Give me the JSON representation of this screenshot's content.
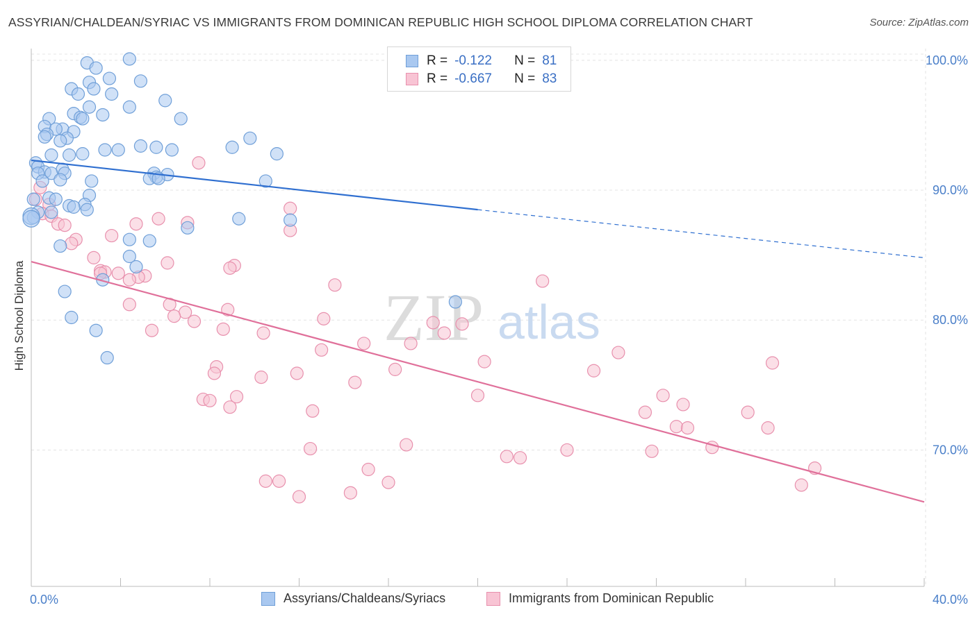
{
  "title": "ASSYRIAN/CHALDEAN/SYRIAC VS IMMIGRANTS FROM DOMINICAN REPUBLIC HIGH SCHOOL DIPLOMA CORRELATION CHART",
  "source": "Source: ZipAtlas.com",
  "watermark": {
    "zip": "ZIP",
    "atlas": "atlas"
  },
  "legend": {
    "r_label": "R =",
    "n_label": "N =",
    "rows": [
      {
        "r": "-0.122",
        "n": "81",
        "color": "#a9c8f0",
        "border": "#6f9fd8"
      },
      {
        "r": "-0.667",
        "n": "83",
        "color": "#f8c4d4",
        "border": "#e890ad"
      }
    ]
  },
  "bottom_legend": [
    {
      "label": "Assyrians/Chaldeans/Syriacs",
      "color": "#a9c8f0",
      "border": "#6f9fd8"
    },
    {
      "label": "Immigrants from Dominican Republic",
      "color": "#f8c4d4",
      "border": "#e890ad"
    }
  ],
  "chart_data": {
    "type": "scatter",
    "title": "ASSYRIAN/CHALDEAN/SYRIAC VS IMMIGRANTS FROM DOMINICAN REPUBLIC HIGH SCHOOL DIPLOMA CORRELATION CHART",
    "xlabel": "",
    "ylabel": "High School Diploma",
    "xlim": [
      0,
      40
    ],
    "ylim": [
      59.5,
      100.9
    ],
    "x_tick_labels": [
      "0.0%",
      "40.0%"
    ],
    "y_ticks": [
      70,
      80,
      90,
      100
    ],
    "y_tick_labels": [
      "70.0%",
      "80.0%",
      "90.0%",
      "100.0%"
    ],
    "grid": true,
    "legend_position": "top-center",
    "series": [
      {
        "name": "Assyrians/Chaldeans/Syriacs",
        "color": "#a9c8f0",
        "edge": "#6f9fd8",
        "line_color": "#2f6fd0",
        "trend": {
          "x": [
            0,
            20
          ],
          "y": [
            92.3,
            88.5
          ]
        },
        "trend_dashed": {
          "x": [
            20,
            40
          ],
          "y": [
            88.5,
            84.8
          ]
        },
        "points": [
          [
            1.8,
            97.8
          ],
          [
            2.5,
            99.8
          ],
          [
            2.9,
            99.4
          ],
          [
            4.4,
            100.1
          ],
          [
            3.5,
            98.6
          ],
          [
            4.9,
            98.4
          ],
          [
            2.6,
            98.3
          ],
          [
            2.8,
            97.8
          ],
          [
            3.6,
            97.4
          ],
          [
            2.1,
            97.4
          ],
          [
            6.0,
            96.9
          ],
          [
            4.4,
            96.4
          ],
          [
            2.6,
            96.4
          ],
          [
            3.2,
            95.8
          ],
          [
            1.9,
            95.9
          ],
          [
            2.2,
            95.6
          ],
          [
            2.3,
            95.5
          ],
          [
            0.8,
            95.5
          ],
          [
            6.7,
            95.5
          ],
          [
            0.6,
            94.9
          ],
          [
            1.4,
            94.7
          ],
          [
            1.1,
            94.7
          ],
          [
            1.9,
            94.5
          ],
          [
            0.7,
            94.3
          ],
          [
            0.6,
            94.1
          ],
          [
            1.6,
            94.0
          ],
          [
            9.8,
            94.0
          ],
          [
            1.3,
            93.8
          ],
          [
            9.0,
            93.3
          ],
          [
            4.9,
            93.4
          ],
          [
            5.6,
            93.3
          ],
          [
            3.3,
            93.1
          ],
          [
            3.9,
            93.1
          ],
          [
            6.3,
            93.1
          ],
          [
            2.3,
            92.8
          ],
          [
            11.0,
            92.8
          ],
          [
            0.9,
            92.7
          ],
          [
            1.7,
            92.7
          ],
          [
            0.2,
            92.1
          ],
          [
            0.3,
            91.8
          ],
          [
            1.4,
            91.6
          ],
          [
            0.6,
            91.4
          ],
          [
            0.3,
            91.3
          ],
          [
            1.5,
            91.3
          ],
          [
            0.9,
            91.3
          ],
          [
            5.5,
            91.3
          ],
          [
            6.1,
            91.2
          ],
          [
            5.6,
            91.0
          ],
          [
            5.3,
            90.9
          ],
          [
            5.7,
            90.9
          ],
          [
            1.3,
            90.8
          ],
          [
            0.5,
            90.7
          ],
          [
            2.7,
            90.7
          ],
          [
            10.5,
            90.7
          ],
          [
            2.6,
            89.6
          ],
          [
            0.8,
            89.4
          ],
          [
            1.1,
            89.3
          ],
          [
            0.1,
            89.3
          ],
          [
            2.4,
            88.9
          ],
          [
            1.7,
            88.8
          ],
          [
            1.9,
            88.7
          ],
          [
            2.5,
            88.5
          ],
          [
            0.3,
            88.3
          ],
          [
            0.9,
            88.3
          ],
          [
            0.1,
            87.9
          ],
          [
            9.3,
            87.8
          ],
          [
            11.6,
            87.7
          ],
          [
            7.0,
            87.1
          ],
          [
            4.4,
            86.2
          ],
          [
            5.3,
            86.1
          ],
          [
            1.3,
            85.7
          ],
          [
            4.4,
            84.9
          ],
          [
            4.7,
            84.1
          ],
          [
            3.2,
            83.1
          ],
          [
            1.5,
            82.2
          ],
          [
            19.0,
            81.4
          ],
          [
            1.8,
            80.2
          ],
          [
            2.9,
            79.2
          ],
          [
            3.4,
            77.1
          ],
          [
            0.0,
            88.0
          ],
          [
            0.0,
            87.8
          ]
        ]
      },
      {
        "name": "Immigrants from Dominican Republic",
        "color": "#f8c4d4",
        "edge": "#e890ad",
        "line_color": "#e0709a",
        "trend": {
          "x": [
            0,
            40
          ],
          "y": [
            84.5,
            66.0
          ]
        },
        "points": [
          [
            7.5,
            92.1
          ],
          [
            0.4,
            90.2
          ],
          [
            0.2,
            89.3
          ],
          [
            0.8,
            88.9
          ],
          [
            11.6,
            88.6
          ],
          [
            0.5,
            88.2
          ],
          [
            0.9,
            88.0
          ],
          [
            5.7,
            87.8
          ],
          [
            7.0,
            87.5
          ],
          [
            4.7,
            87.4
          ],
          [
            1.2,
            87.4
          ],
          [
            1.5,
            87.3
          ],
          [
            11.6,
            86.9
          ],
          [
            3.6,
            86.5
          ],
          [
            2.0,
            86.2
          ],
          [
            1.8,
            85.9
          ],
          [
            2.8,
            84.8
          ],
          [
            6.1,
            84.4
          ],
          [
            9.1,
            84.2
          ],
          [
            8.9,
            84.0
          ],
          [
            3.1,
            83.8
          ],
          [
            3.3,
            83.7
          ],
          [
            3.1,
            83.6
          ],
          [
            3.9,
            83.6
          ],
          [
            5.1,
            83.4
          ],
          [
            4.8,
            83.3
          ],
          [
            4.4,
            83.1
          ],
          [
            22.9,
            83.0
          ],
          [
            13.6,
            82.7
          ],
          [
            4.4,
            81.2
          ],
          [
            6.2,
            81.2
          ],
          [
            8.8,
            80.8
          ],
          [
            6.9,
            80.6
          ],
          [
            6.4,
            80.3
          ],
          [
            13.1,
            80.1
          ],
          [
            7.3,
            79.9
          ],
          [
            18.0,
            79.8
          ],
          [
            19.3,
            79.7
          ],
          [
            8.6,
            79.3
          ],
          [
            5.4,
            79.2
          ],
          [
            18.5,
            79.0
          ],
          [
            10.4,
            79.0
          ],
          [
            14.9,
            78.2
          ],
          [
            17.0,
            78.2
          ],
          [
            13.0,
            77.7
          ],
          [
            26.3,
            77.5
          ],
          [
            20.3,
            76.8
          ],
          [
            33.2,
            76.7
          ],
          [
            25.2,
            76.1
          ],
          [
            16.3,
            76.2
          ],
          [
            8.3,
            76.4
          ],
          [
            8.2,
            75.9
          ],
          [
            11.9,
            75.9
          ],
          [
            10.3,
            75.6
          ],
          [
            14.5,
            75.2
          ],
          [
            20.0,
            74.2
          ],
          [
            9.2,
            74.1
          ],
          [
            28.3,
            74.2
          ],
          [
            27.5,
            72.9
          ],
          [
            7.7,
            73.9
          ],
          [
            8.0,
            73.8
          ],
          [
            29.2,
            73.5
          ],
          [
            8.9,
            73.3
          ],
          [
            32.1,
            72.9
          ],
          [
            12.6,
            73.0
          ],
          [
            28.9,
            71.8
          ],
          [
            29.4,
            71.7
          ],
          [
            33.0,
            71.7
          ],
          [
            16.8,
            70.4
          ],
          [
            27.8,
            69.9
          ],
          [
            30.5,
            70.2
          ],
          [
            12.5,
            70.1
          ],
          [
            24.0,
            70.0
          ],
          [
            21.3,
            69.5
          ],
          [
            21.9,
            69.4
          ],
          [
            35.1,
            68.6
          ],
          [
            15.1,
            68.5
          ],
          [
            10.5,
            67.6
          ],
          [
            11.1,
            67.6
          ],
          [
            16.0,
            67.5
          ],
          [
            34.5,
            67.3
          ],
          [
            14.3,
            66.7
          ],
          [
            12.0,
            66.4
          ]
        ]
      }
    ]
  }
}
